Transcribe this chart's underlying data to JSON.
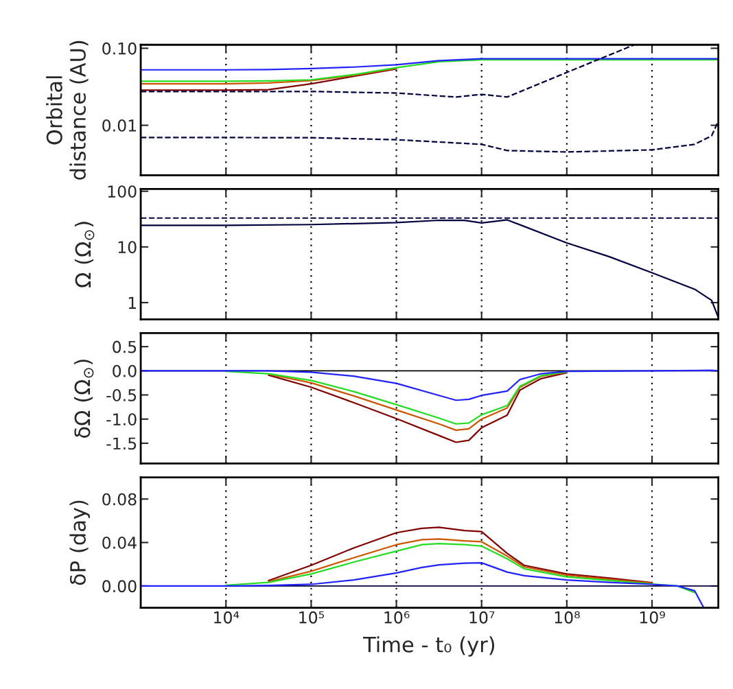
{
  "chart_data": [
    {
      "type": "line",
      "ylabel": "Orbital\ndistance (AU)",
      "log": "xy",
      "grid": "x",
      "tick_labels": "y",
      "marker": "none",
      "xlim": [
        1000,
        6000000000
      ],
      "xticks": [
        {
          "value": 10000,
          "label": null
        },
        {
          "value": 100000,
          "label": null
        },
        {
          "value": 1000000,
          "label": null
        },
        {
          "value": 10000000,
          "label": null
        },
        {
          "value": 100000000,
          "label": null
        },
        {
          "value": 1000000000,
          "label": null
        }
      ],
      "ylim": [
        0.00225,
        0.111
      ],
      "yticks": [
        {
          "value": 0.01,
          "label": "0.01"
        },
        {
          "value": 0.1,
          "label": "0.10"
        }
      ],
      "x": [
        1000,
        10000,
        31623,
        100000,
        316228,
        1000000,
        3162278,
        10000000,
        20000000,
        100000000,
        1000000000,
        6000000000
      ],
      "series": [
        {
          "color": "#800000",
          "line_style": "solid",
          "values": [
            0.0286,
            0.0286,
            0.029,
            0.0345,
            0.0433,
            0.054,
            null,
            null,
            null,
            null,
            null,
            null
          ]
        },
        {
          "color": "#cc5500",
          "line_style": "solid",
          "values": [
            0.0345,
            0.0345,
            0.0354,
            0.038,
            0.0445,
            0.055,
            null,
            null,
            null,
            null,
            null,
            null
          ]
        },
        {
          "color": "#22dd22",
          "line_style": "solid",
          "values": [
            0.0373,
            0.0373,
            0.0377,
            0.039,
            0.0455,
            0.056,
            0.067,
            0.071,
            0.071,
            0.071,
            0.071,
            0.071
          ]
        },
        {
          "color": "#2222ff",
          "line_style": "solid",
          "values": [
            0.0525,
            0.0525,
            0.053,
            0.0545,
            0.057,
            0.061,
            0.069,
            0.073,
            0.073,
            0.073,
            0.073,
            0.073
          ]
        },
        {
          "color": "#000040",
          "line_style": "dashed",
          "x": [
            1000,
            10000,
            100000,
            1000000,
            5000000,
            10000000,
            20000000,
            100000000,
            620000000
          ],
          "values": [
            0.0275,
            0.0275,
            0.0275,
            0.0262,
            0.0233,
            0.0252,
            0.0233,
            0.0486,
            0.111
          ]
        },
        {
          "color": "#000040",
          "line_style": "dashed",
          "x": [
            1000,
            10000,
            100000,
            1000000,
            10000000,
            20000000,
            100000000,
            1000000000,
            3162278000,
            5000000000,
            6000000000
          ],
          "values": [
            0.00693,
            0.00693,
            0.0069,
            0.0065,
            0.00566,
            0.0047,
            0.0045,
            0.0048,
            0.00566,
            0.0073,
            0.0113
          ]
        }
      ]
    },
    {
      "type": "line",
      "ylabel": "Ω (Ω$_{⊙}$)",
      "log": "xy",
      "grid": "x",
      "tick_labels": "y",
      "marker": "none",
      "xlim": [
        1000,
        6000000000
      ],
      "xticks": [
        {
          "value": 10000,
          "label": null
        },
        {
          "value": 100000,
          "label": null
        },
        {
          "value": 1000000,
          "label": null
        },
        {
          "value": 10000000,
          "label": null
        },
        {
          "value": 100000000,
          "label": null
        },
        {
          "value": 1000000000,
          "label": null
        }
      ],
      "ylim": [
        0.5,
        110
      ],
      "yticks": [
        1,
        10,
        100
      ],
      "x": [
        1000,
        10000,
        100000,
        1000000,
        3162278,
        6309573,
        10000000,
        20000000,
        100000000,
        316227766,
        1000000000,
        3162277660,
        5000000000,
        6000000000
      ],
      "series": [
        {
          "color": "#000040",
          "line_style": "dashed",
          "values": [
            33,
            33,
            33,
            33,
            33,
            33,
            33,
            33,
            33,
            33,
            33,
            33,
            33,
            33
          ]
        },
        {
          "color": "#000040",
          "line_style": "solid",
          "values": [
            24.4,
            24.4,
            25.2,
            27.3,
            30.1,
            30,
            26.9,
            30.6,
            11.8,
            6.67,
            3.43,
            1.74,
            1.1,
            0.54
          ]
        }
      ]
    },
    {
      "type": "line",
      "ylabel": "δΩ (Ω$_{⊙}$)",
      "log": "x",
      "grid": "x",
      "tick_labels": "y",
      "marker": "none",
      "xlim": [
        1000,
        6000000000
      ],
      "xticks": [
        {
          "value": 10000,
          "label": null
        },
        {
          "value": 100000,
          "label": null
        },
        {
          "value": 1000000,
          "label": null
        },
        {
          "value": 10000000,
          "label": null
        },
        {
          "value": 100000000,
          "label": null
        },
        {
          "value": 1000000000,
          "label": null
        }
      ],
      "ylim": [
        -1.92,
        0.78
      ],
      "yticks": [
        {
          "value": 0.5,
          "label": "0.5"
        },
        {
          "value": 0,
          "label": "0.0"
        },
        {
          "value": -0.5,
          "label": "-0.5"
        },
        {
          "value": -1,
          "label": "-1.0"
        },
        {
          "value": -1.5,
          "label": "-1.5"
        }
      ],
      "ref_lines": [
        {
          "axis": "y",
          "value": 0,
          "color": "#000000"
        }
      ],
      "x": [
        1000,
        10000,
        31623,
        100000,
        316228,
        1000000,
        3162278,
        5011872,
        7079458,
        10000000,
        19952623,
        28183829,
        50118723,
        100000000,
        1000000000,
        5011872336,
        6000000000
      ],
      "series": [
        {
          "color": "#800000",
          "line_style": "solid",
          "values": [
            null,
            null,
            -0.09,
            -0.34,
            -0.66,
            -0.99,
            -1.34,
            -1.48,
            -1.44,
            -1.18,
            -0.92,
            -0.4,
            -0.16,
            -0.04,
            null,
            null,
            null
          ]
        },
        {
          "color": "#cc5500",
          "line_style": "solid",
          "values": [
            null,
            null,
            -0.07,
            -0.25,
            -0.52,
            -0.81,
            -1.1,
            -1.23,
            -1.2,
            -1.0,
            -0.77,
            -0.34,
            -0.11,
            -0.03,
            null,
            null,
            null
          ]
        },
        {
          "color": "#22dd22",
          "line_style": "solid",
          "values": [
            null,
            -0.01,
            -0.06,
            -0.2,
            -0.43,
            -0.7,
            -0.98,
            -1.1,
            -1.08,
            -0.91,
            -0.72,
            -0.32,
            -0.1,
            -0.02,
            null,
            null,
            null
          ]
        },
        {
          "color": "#2222ff",
          "line_style": "solid",
          "values": [
            0,
            0,
            0,
            -0.03,
            -0.11,
            -0.26,
            -0.51,
            -0.61,
            -0.59,
            -0.51,
            -0.42,
            -0.18,
            -0.06,
            -0.01,
            0,
            0.01,
            0
          ]
        }
      ]
    },
    {
      "type": "line",
      "ylabel": "δP (day)",
      "xlabel": "Time - t₀ (yr)",
      "log": "x",
      "grid": "x",
      "marker": "none",
      "xlim": [
        1000,
        6000000000
      ],
      "xticks": [
        {
          "value": 10000,
          "label": "10⁴"
        },
        {
          "value": 100000,
          "label": "10⁵"
        },
        {
          "value": 1000000,
          "label": "10⁶"
        },
        {
          "value": 10000000,
          "label": "10⁷"
        },
        {
          "value": 100000000,
          "label": "10⁸"
        },
        {
          "value": 1000000000,
          "label": "10⁹"
        }
      ],
      "ylim": [
        -0.02,
        0.1
      ],
      "yticks": [
        {
          "value": 0,
          "label": "0.00"
        },
        {
          "value": 0.04,
          "label": "0.04"
        },
        {
          "value": 0.08,
          "label": "0.08"
        }
      ],
      "ref_lines": [
        {
          "axis": "y",
          "value": 0,
          "color": "#000040"
        }
      ],
      "x": [
        1000,
        10000,
        31623,
        100000,
        316228,
        1000000,
        1995262,
        3162278,
        6309573,
        10000000,
        19952623,
        31622777,
        100000000,
        316227766,
        1000000000,
        1995262315,
        3162277660,
        3981071706
      ],
      "series": [
        {
          "color": "#800000",
          "line_style": "solid",
          "values": [
            null,
            null,
            0.005,
            0.019,
            0.035,
            0.049,
            0.053,
            0.054,
            0.051,
            0.05,
            0.03,
            0.019,
            0.011,
            0.0073,
            0.003,
            null,
            null,
            null
          ]
        },
        {
          "color": "#cc5500",
          "line_style": "solid",
          "values": [
            null,
            null,
            0.004,
            0.0136,
            0.026,
            0.038,
            0.0426,
            0.0433,
            0.0415,
            0.0407,
            0.0275,
            0.0176,
            0.0099,
            0.0062,
            0.0026,
            null,
            null,
            null
          ]
        },
        {
          "color": "#22dd22",
          "line_style": "solid",
          "values": [
            null,
            0.0007,
            0.0033,
            0.011,
            0.022,
            0.032,
            0.038,
            0.039,
            0.038,
            0.0367,
            0.025,
            0.0158,
            0.0084,
            0.0051,
            0.0018,
            0,
            -0.006,
            null
          ]
        },
        {
          "color": "#2222ff",
          "line_style": "solid",
          "values": [
            0,
            0,
            0.0004,
            0.0015,
            0.0055,
            0.012,
            0.017,
            0.0194,
            0.021,
            0.0213,
            0.0128,
            0.0095,
            0.0055,
            0.0033,
            0.0015,
            0,
            -0.0044,
            -0.019
          ]
        }
      ]
    }
  ]
}
